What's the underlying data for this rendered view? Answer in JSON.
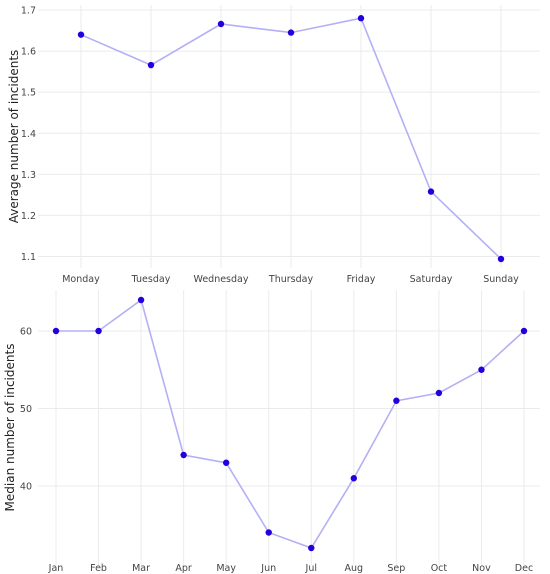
{
  "chart_data": [
    {
      "type": "line",
      "x": [
        "Monday",
        "Tuesday",
        "Wednesday",
        "Thursday",
        "Friday",
        "Saturday",
        "Sunday"
      ],
      "y": [
        1.64,
        1.566,
        1.666,
        1.645,
        1.68,
        1.258,
        1.094
      ],
      "ylabel": "Average number of incidents",
      "ylim": [
        1.08,
        1.7
      ],
      "yticks": [
        1.1,
        1.2,
        1.3,
        1.4,
        1.5,
        1.6,
        1.7
      ],
      "ytick_labels": [
        "1.1",
        "1.2",
        "1.3",
        "1.4",
        "1.5",
        "1.6",
        "1.7"
      ],
      "grid": true,
      "colors": {
        "line": "#b3b0f5",
        "point": "#2200dd"
      }
    },
    {
      "type": "line",
      "x": [
        "Jan",
        "Feb",
        "Mar",
        "Apr",
        "May",
        "Jun",
        "Jul",
        "Aug",
        "Sep",
        "Oct",
        "Nov",
        "Dec"
      ],
      "y": [
        60,
        60,
        64,
        44,
        43,
        34,
        32,
        41,
        51,
        52,
        55,
        60
      ],
      "ylabel": "Median number of incidents",
      "ylim": [
        32,
        64
      ],
      "yticks": [
        40,
        50,
        60
      ],
      "ytick_labels": [
        "40",
        "50",
        "60"
      ],
      "grid": true,
      "colors": {
        "line": "#b3b0f5",
        "point": "#2200dd"
      }
    }
  ]
}
